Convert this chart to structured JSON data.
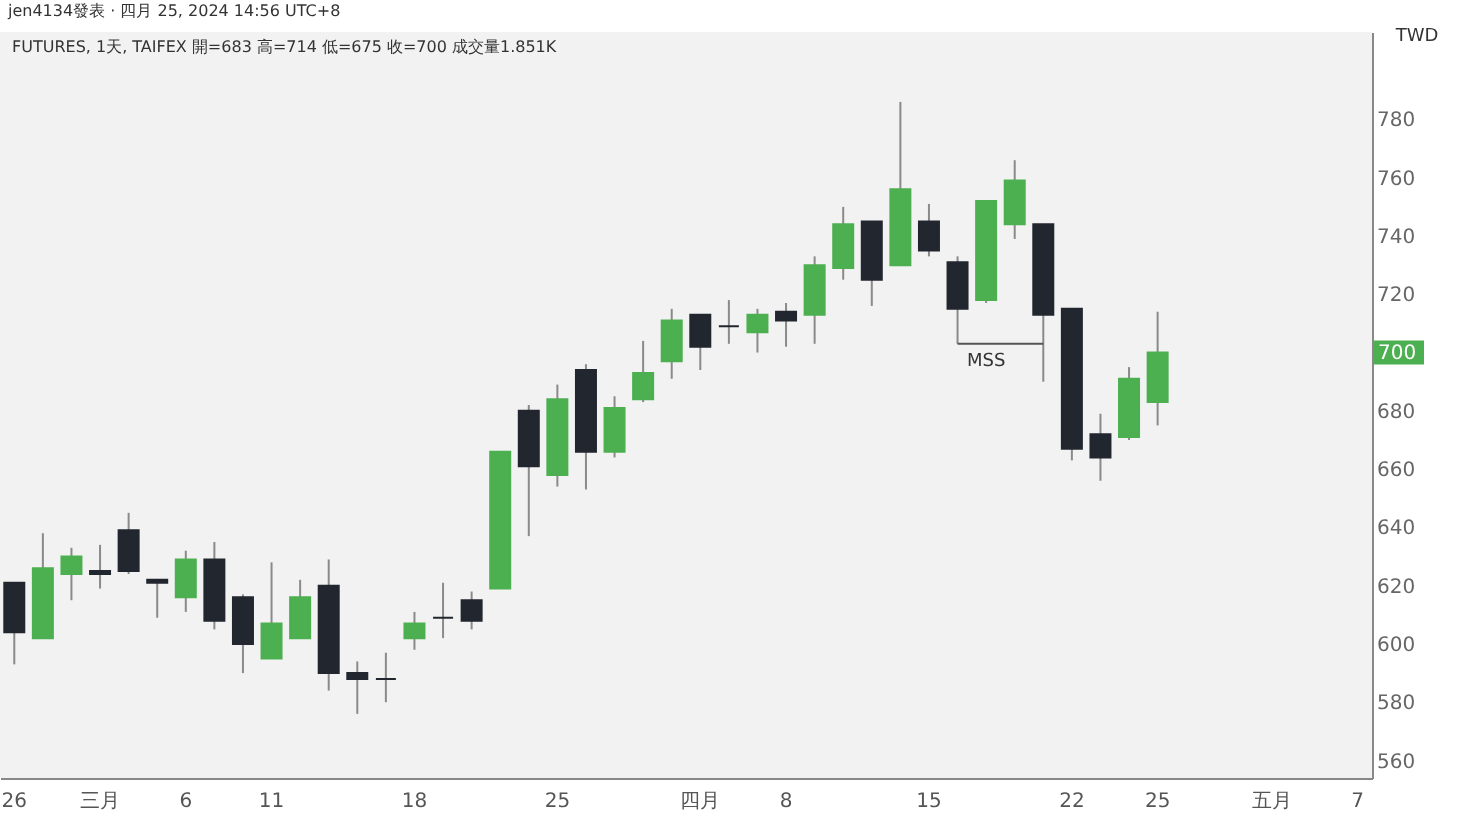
{
  "chart_data": {
    "type": "candlestick",
    "title": "jen4134發表 · 四月 25, 2024 14:56 UTC+8",
    "subtitle": "FUTURES, 1天, TAIFEX  開=683  高=714  低=675  收=700  成交量1.851K",
    "ylabel": "TWD",
    "categories": [
      "26",
      null,
      null,
      "三月",
      null,
      null,
      "6",
      null,
      null,
      "11",
      null,
      null,
      null,
      null,
      "18",
      null,
      null,
      null,
      null,
      "25",
      null,
      null,
      null,
      null,
      "四月",
      null,
      null,
      "8",
      null,
      null,
      null,
      null,
      "15",
      null,
      null,
      null,
      null,
      "22",
      null,
      null,
      "25",
      null,
      null,
      null,
      "五月",
      null,
      null,
      "7"
    ],
    "ohlc": [
      [
        621,
        621,
        593,
        604
      ],
      [
        602,
        638,
        602,
        626
      ],
      [
        624,
        633,
        615,
        630
      ],
      [
        625,
        634,
        619,
        624
      ],
      [
        639,
        645,
        624,
        625
      ],
      [
        622,
        622,
        609,
        621
      ],
      [
        616,
        632,
        611,
        629
      ],
      [
        629,
        635,
        605,
        608
      ],
      [
        616,
        617,
        590,
        600
      ],
      [
        595,
        628,
        595,
        607
      ],
      [
        602,
        622,
        602,
        616
      ],
      [
        620,
        629,
        584,
        590
      ],
      [
        590,
        594,
        576,
        588
      ],
      [
        588,
        597,
        580,
        588
      ],
      [
        602,
        611,
        598,
        607
      ],
      [
        609,
        621,
        602,
        609
      ],
      [
        615,
        618,
        605,
        608
      ],
      [
        619,
        666,
        619,
        666
      ],
      [
        680,
        682,
        637,
        661
      ],
      [
        658,
        689,
        654,
        684
      ],
      [
        694,
        696,
        653,
        666
      ],
      [
        666,
        685,
        664,
        681
      ],
      [
        684,
        704,
        683,
        693
      ],
      [
        697,
        715,
        691,
        711
      ],
      [
        713,
        713,
        694,
        702
      ],
      [
        709,
        718,
        703,
        709
      ],
      [
        707,
        715,
        700,
        713
      ],
      [
        714,
        717,
        702,
        711
      ],
      [
        713,
        733,
        703,
        730
      ],
      [
        729,
        750,
        725,
        744
      ],
      [
        745,
        745,
        716,
        725
      ],
      [
        730,
        786,
        730,
        756
      ],
      [
        745,
        751,
        733,
        735
      ],
      [
        731,
        733,
        703,
        715
      ],
      [
        718,
        752,
        717,
        752
      ],
      [
        744,
        766,
        739,
        759
      ],
      [
        744,
        744,
        690,
        713
      ],
      [
        715,
        715,
        663,
        667
      ],
      [
        672,
        679,
        656,
        664
      ],
      [
        671,
        695,
        670,
        691
      ],
      [
        683,
        714,
        675,
        700
      ],
      null,
      null,
      null,
      null,
      null,
      null,
      null
    ],
    "colors": [
      "#22262f",
      "#4caf50",
      "#4caf50",
      "#22262f",
      "#22262f",
      "#22262f",
      "#4caf50",
      "#22262f",
      "#22262f",
      "#4caf50",
      "#4caf50",
      "#22262f",
      "#22262f",
      "#22262f",
      "#4caf50",
      "#22262f",
      "#22262f",
      "#4caf50",
      "#22262f",
      "#4caf50",
      "#22262f",
      "#4caf50",
      "#4caf50",
      "#4caf50",
      "#22262f",
      "#22262f",
      "#4caf50",
      "#22262f",
      "#4caf50",
      "#4caf50",
      "#22262f",
      "#4caf50",
      "#22262f",
      "#22262f",
      "#4caf50",
      "#4caf50",
      "#22262f",
      "#22262f",
      "#22262f",
      "#4caf50",
      "#4caf50",
      null,
      null,
      null,
      null,
      null,
      null,
      null
    ],
    "series": [
      {
        "type": "line",
        "color": "#555555",
        "values": [
          null,
          null,
          null,
          null,
          null,
          null,
          null,
          null,
          null,
          null,
          null,
          null,
          null,
          null,
          null,
          null,
          null,
          null,
          null,
          null,
          null,
          null,
          null,
          null,
          null,
          null,
          null,
          null,
          null,
          null,
          null,
          null,
          null,
          703,
          703,
          703,
          703,
          null,
          null,
          null,
          null,
          null,
          null,
          null,
          null,
          null,
          null,
          null
        ]
      }
    ],
    "annotations": [
      {
        "text": "MSS",
        "y": 703
      },
      "700"
    ],
    "ylim": [
      554,
      810
    ],
    "yticks": [
      560,
      580,
      600,
      620,
      640,
      660,
      680,
      700,
      720,
      740,
      760,
      780
    ]
  }
}
